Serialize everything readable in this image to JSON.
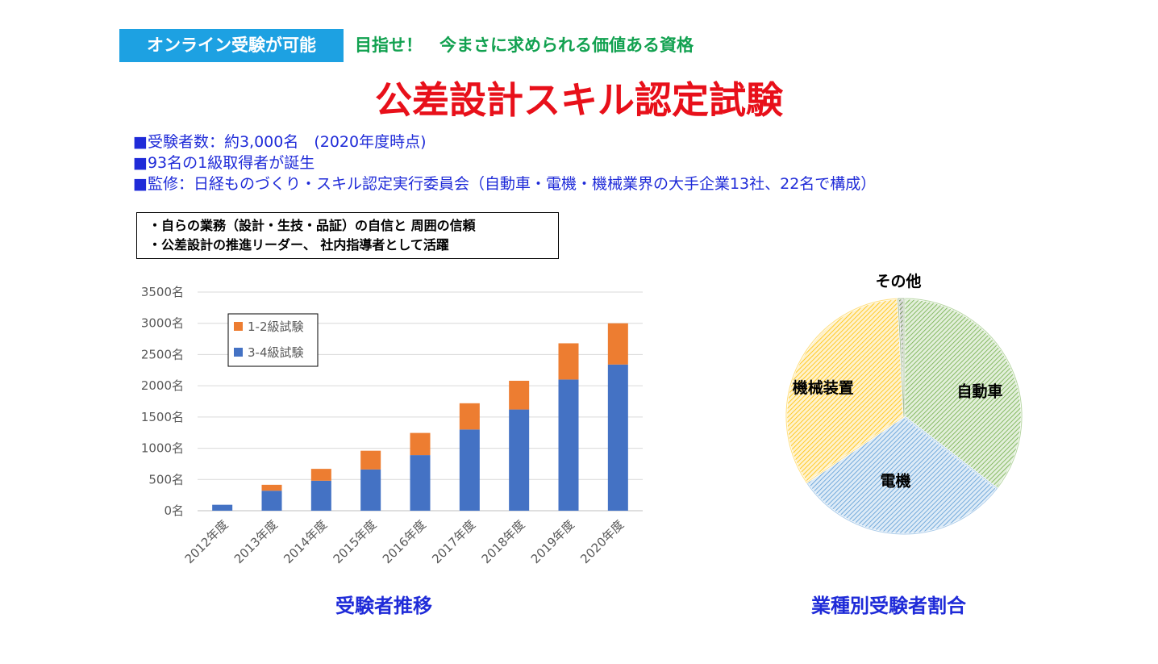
{
  "header": {
    "badge": "オンライン受験が可能",
    "tagline": "目指せ！　今まさに求められる価値ある資格",
    "title": "公差設計スキル認定試験"
  },
  "facts": [
    "■受験者数：約3,000名　(2020年度時点)",
    "■93名の1級取得者が誕生",
    "■監修：日経ものづくり・スキル認定実行委員会（自動車・電機・機械業界の大手企業13社、22名で構成）"
  ],
  "box_lines": [
    "・自らの業務（設計・生技・品証）の自信と 周囲の信頼",
    "・公差設計の推進リーダー、 社内指導者として活躍"
  ],
  "colors": {
    "series_34": "#4472c4",
    "series_12": "#ed7d31",
    "pie_auto": "#a9d18e",
    "pie_elec": "#9dc3e6",
    "pie_mech": "#ffd966",
    "pie_other": "#7f7f7f"
  },
  "chart_data": [
    {
      "type": "bar",
      "stacked": true,
      "title": "受験者推移",
      "categories": [
        "2012年度",
        "2013年度",
        "2014年度",
        "2015年度",
        "2016年度",
        "2017年度",
        "2018年度",
        "2019年度",
        "2020年度"
      ],
      "series": [
        {
          "name": "3-4級試験",
          "values": [
            95,
            320,
            480,
            660,
            890,
            1300,
            1620,
            2100,
            2340
          ]
        },
        {
          "name": "1-2級試験",
          "values": [
            0,
            95,
            190,
            300,
            355,
            420,
            460,
            580,
            660
          ]
        }
      ],
      "yticks": [
        "0名",
        "500名",
        "1000名",
        "1500名",
        "2000名",
        "2500名",
        "3000名",
        "3500名"
      ],
      "ylim": [
        0,
        3500
      ],
      "legend_order": [
        "1-2級試験",
        "3-4級試験"
      ],
      "legend_position": "top-left",
      "grid": true
    },
    {
      "type": "pie",
      "title": "業種別受験者割合",
      "labels": [
        "自動車",
        "電機",
        "機械装置",
        "その他"
      ],
      "values": [
        35.5,
        30.0,
        33.7,
        0.8
      ]
    }
  ]
}
